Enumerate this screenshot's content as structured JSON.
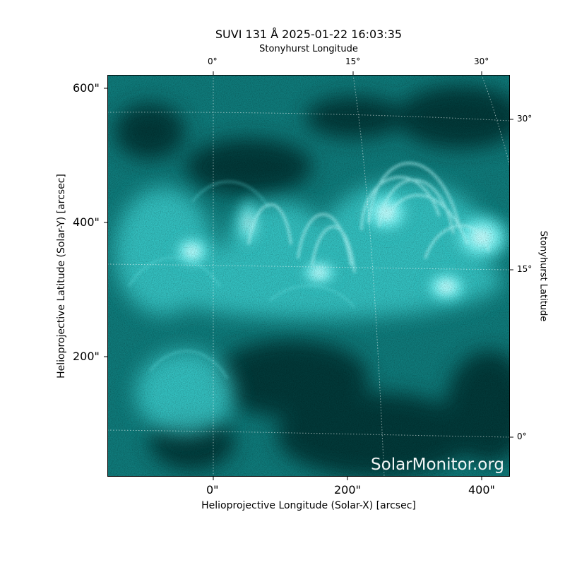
{
  "title": "SUVI 131 Å 2025-01-22 16:03:35",
  "top_axis_label": "Stonyhurst Longitude",
  "right_axis_label": "Stonyhurst Latitude",
  "x_axis_label": "Helioprojective Longitude (Solar-X) [arcsec]",
  "y_axis_label": "Helioprojective Latitude (Solar-Y) [arcsec]",
  "x_ticks": [
    "0\"",
    "200\"",
    "400\""
  ],
  "y_ticks": [
    "600\"",
    "400\"",
    "200\""
  ],
  "top_ticks": [
    "0°",
    "15°",
    "30°"
  ],
  "right_ticks": [
    "30°",
    "15°",
    "0°"
  ],
  "watermark": "SolarMonitor.org",
  "colors": {
    "image_base": "#0a6b6b",
    "bright": "#aaffff",
    "dark": "#012222",
    "grid": "#ffffff"
  }
}
